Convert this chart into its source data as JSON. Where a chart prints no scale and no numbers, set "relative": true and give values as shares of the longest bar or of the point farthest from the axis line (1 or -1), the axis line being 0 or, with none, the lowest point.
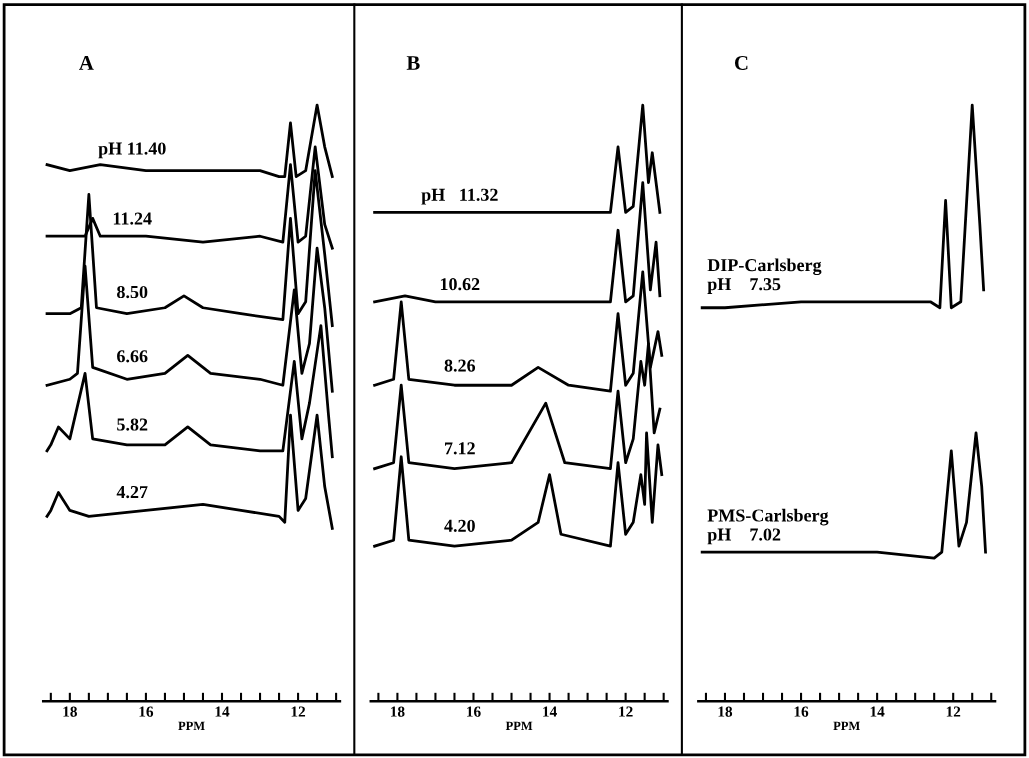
{
  "chart_data": [
    {
      "type": "line",
      "title": "A",
      "xlabel": "PPM",
      "relative": true,
      "xlim": [
        18.7,
        10.9
      ],
      "xticks": [
        {
          "value": 18.5,
          "label": null
        },
        18,
        {
          "value": 17.5,
          "label": null
        },
        {
          "value": 17,
          "label": null
        },
        {
          "value": 16.5,
          "label": null
        },
        16,
        {
          "value": 15.5,
          "label": null
        },
        {
          "value": 15,
          "label": null
        },
        {
          "value": 14.5,
          "label": null
        },
        14,
        {
          "value": 13.5,
          "label": null
        },
        {
          "value": 13,
          "label": null
        },
        {
          "value": 12.5,
          "label": null
        },
        12,
        {
          "value": 11.5,
          "label": null
        },
        {
          "value": 11,
          "label": null
        }
      ],
      "series": [
        {
          "name": "pH 11.40",
          "color": "#000000",
          "x": [
            18.6,
            18,
            17.2,
            16,
            14,
            13,
            12.5,
            12.35,
            12.2,
            12.05,
            11.8,
            11.5,
            11.3,
            11.1
          ],
          "values": [
            0.9,
            0.89,
            0.9,
            0.89,
            0.89,
            0.89,
            0.88,
            0.88,
            0.97,
            0.88,
            0.89,
            1.0,
            0.93,
            0.88
          ]
        },
        {
          "name": "11.24",
          "color": "#000000",
          "x": [
            18.6,
            18,
            17.6,
            17.4,
            17.2,
            16,
            14.5,
            13,
            12.4,
            12.2,
            12.0,
            11.8,
            11.55,
            11.3,
            11.1
          ],
          "values": [
            0.78,
            0.78,
            0.78,
            0.81,
            0.78,
            0.78,
            0.77,
            0.78,
            0.77,
            0.9,
            0.77,
            0.78,
            0.93,
            0.8,
            0.76
          ]
        },
        {
          "name": "8.50",
          "color": "#000000",
          "x": [
            18.6,
            18,
            17.7,
            17.5,
            17.3,
            16.5,
            15.5,
            15,
            14.5,
            13.5,
            12.4,
            12.2,
            12.0,
            11.8,
            11.55,
            11.3,
            11.1
          ],
          "values": [
            0.65,
            0.65,
            0.66,
            0.85,
            0.66,
            0.65,
            0.66,
            0.68,
            0.66,
            0.65,
            0.64,
            0.81,
            0.65,
            0.67,
            0.89,
            0.75,
            0.63
          ]
        },
        {
          "name": "6.66",
          "color": "#000000",
          "x": [
            18.6,
            18,
            17.8,
            17.6,
            17.4,
            16.5,
            15.5,
            14.9,
            14.3,
            13,
            12.4,
            12.1,
            11.9,
            11.7,
            11.5,
            11.3,
            11.1
          ],
          "values": [
            0.53,
            0.54,
            0.55,
            0.73,
            0.56,
            0.54,
            0.55,
            0.58,
            0.55,
            0.54,
            0.53,
            0.69,
            0.55,
            0.6,
            0.76,
            0.66,
            0.52
          ]
        },
        {
          "name": "5.82",
          "color": "#000000",
          "x": [
            18.6,
            18.5,
            18.3,
            18.0,
            17.6,
            17.4,
            16.5,
            15.5,
            14.9,
            14.3,
            13,
            12.4,
            12.1,
            11.9,
            11.7,
            11.4,
            11.2,
            11.1
          ],
          "values": [
            0.42,
            0.43,
            0.46,
            0.44,
            0.55,
            0.44,
            0.43,
            0.43,
            0.46,
            0.43,
            0.42,
            0.42,
            0.57,
            0.44,
            0.5,
            0.63,
            0.48,
            0.41
          ]
        },
        {
          "name": "4.27",
          "color": "#000000",
          "x": [
            18.6,
            18.5,
            18.3,
            18.0,
            17.5,
            16,
            14.5,
            13.5,
            12.5,
            12.35,
            12.2,
            12.0,
            11.8,
            11.5,
            11.3,
            11.1
          ],
          "values": [
            0.31,
            0.32,
            0.35,
            0.32,
            0.31,
            0.32,
            0.33,
            0.32,
            0.31,
            0.3,
            0.48,
            0.32,
            0.34,
            0.48,
            0.36,
            0.29
          ]
        }
      ]
    },
    {
      "type": "line",
      "title": "B",
      "xlabel": "PPM",
      "relative": true,
      "xlim": [
        18.7,
        10.9
      ],
      "xticks": [
        {
          "value": 18.5,
          "label": null
        },
        18,
        {
          "value": 17.5,
          "label": null
        },
        {
          "value": 17,
          "label": null
        },
        {
          "value": 16.5,
          "label": null
        },
        16,
        {
          "value": 15.5,
          "label": null
        },
        {
          "value": 15,
          "label": null
        },
        {
          "value": 14.5,
          "label": null
        },
        14,
        {
          "value": 13.5,
          "label": null
        },
        {
          "value": 13,
          "label": null
        },
        {
          "value": 12.5,
          "label": null
        },
        12,
        {
          "value": 11.5,
          "label": null
        },
        {
          "value": 11,
          "label": null
        }
      ],
      "series": [
        {
          "name": "pH   11.32",
          "color": "#000000",
          "x": [
            18.6,
            17,
            15,
            13,
            12.4,
            12.2,
            12.0,
            11.8,
            11.55,
            11.4,
            11.3,
            11.1
          ],
          "values": [
            0.82,
            0.82,
            0.82,
            0.82,
            0.82,
            0.93,
            0.82,
            0.83,
            1.0,
            0.87,
            0.92,
            0.82
          ]
        },
        {
          "name": "10.62",
          "color": "#000000",
          "x": [
            18.6,
            17.8,
            17,
            15,
            13,
            12.4,
            12.2,
            12.0,
            11.8,
            11.55,
            11.35,
            11.2,
            11.1
          ],
          "values": [
            0.67,
            0.68,
            0.67,
            0.67,
            0.67,
            0.67,
            0.79,
            0.67,
            0.68,
            0.87,
            0.69,
            0.77,
            0.68
          ]
        },
        {
          "name": "8.26",
          "color": "#000000",
          "x": [
            18.6,
            18.1,
            17.9,
            17.7,
            16.5,
            15,
            14.3,
            13.5,
            12.4,
            12.2,
            12.0,
            11.8,
            11.55,
            11.35,
            11.15,
            11.05
          ],
          "values": [
            0.53,
            0.54,
            0.67,
            0.54,
            0.53,
            0.53,
            0.56,
            0.53,
            0.52,
            0.65,
            0.53,
            0.55,
            0.72,
            0.56,
            0.62,
            0.58
          ]
        },
        {
          "name": "7.12",
          "color": "#000000",
          "x": [
            18.6,
            18.1,
            17.9,
            17.7,
            16.5,
            15,
            14.1,
            13.6,
            12.4,
            12.2,
            12.0,
            11.8,
            11.6,
            11.5,
            11.4,
            11.25,
            11.1
          ],
          "values": [
            0.39,
            0.4,
            0.53,
            0.4,
            0.39,
            0.4,
            0.5,
            0.4,
            0.39,
            0.52,
            0.4,
            0.44,
            0.57,
            0.53,
            0.6,
            0.45,
            0.49
          ]
        },
        {
          "name": "4.20",
          "color": "#000000",
          "x": [
            18.6,
            18.1,
            17.9,
            17.7,
            16.5,
            15,
            14.3,
            14.0,
            13.7,
            12.4,
            12.2,
            12.0,
            11.8,
            11.6,
            11.5,
            11.45,
            11.3,
            11.15,
            11.05
          ],
          "values": [
            0.26,
            0.27,
            0.41,
            0.27,
            0.26,
            0.27,
            0.3,
            0.38,
            0.28,
            0.26,
            0.4,
            0.28,
            0.3,
            0.38,
            0.33,
            0.45,
            0.3,
            0.43,
            0.38
          ]
        }
      ]
    },
    {
      "type": "line",
      "title": "C",
      "xlabel": "PPM",
      "relative": true,
      "xlim": [
        18.7,
        10.9
      ],
      "xticks": [
        {
          "value": 18.5,
          "label": null
        },
        18,
        {
          "value": 17.5,
          "label": null
        },
        {
          "value": 17,
          "label": null
        },
        {
          "value": 16.5,
          "label": null
        },
        16,
        {
          "value": 15.5,
          "label": null
        },
        {
          "value": 15,
          "label": null
        },
        {
          "value": 14.5,
          "label": null
        },
        14,
        {
          "value": 13.5,
          "label": null
        },
        {
          "value": 13,
          "label": null
        },
        {
          "value": 12.5,
          "label": null
        },
        12,
        {
          "value": 11.5,
          "label": null
        },
        {
          "value": 11,
          "label": null
        }
      ],
      "series": [
        {
          "name": "DIP-Carlsberg\npH    7.35",
          "color": "#000000",
          "x": [
            18.6,
            18,
            16,
            14,
            12.6,
            12.35,
            12.2,
            12.05,
            11.8,
            11.5,
            11.3,
            11.2
          ],
          "values": [
            0.66,
            0.66,
            0.67,
            0.67,
            0.67,
            0.66,
            0.84,
            0.66,
            0.67,
            1.0,
            0.8,
            0.69
          ]
        },
        {
          "name": "PMS-Carlsberg\npH    7.02",
          "color": "#000000",
          "x": [
            18.6,
            18,
            16,
            14,
            12.5,
            12.3,
            12.05,
            11.85,
            11.65,
            11.4,
            11.25,
            11.15
          ],
          "values": [
            0.25,
            0.25,
            0.25,
            0.25,
            0.24,
            0.25,
            0.42,
            0.26,
            0.3,
            0.45,
            0.36,
            0.25
          ]
        }
      ]
    }
  ]
}
